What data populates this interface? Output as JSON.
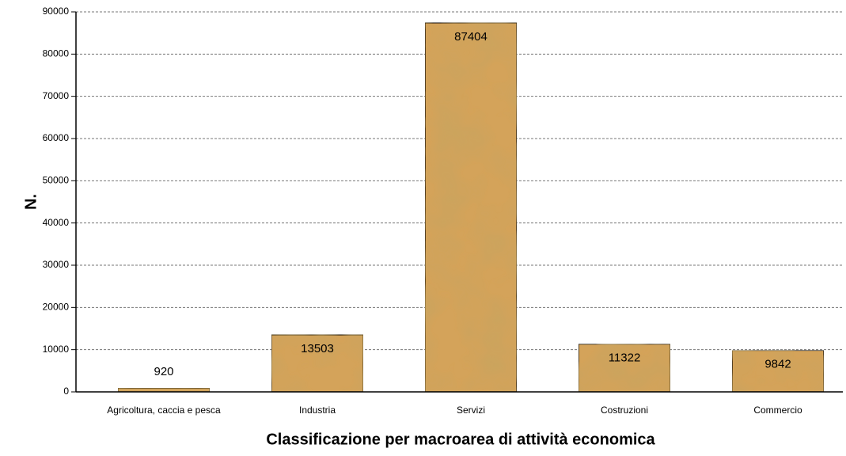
{
  "chart_data": {
    "type": "bar",
    "xlabel": "Classificazione per macroarea di attività economica",
    "ylabel": "N.",
    "categories": [
      "Agricoltura, caccia e pesca",
      "Industria",
      "Servizi",
      "Costruzioni",
      "Commercio"
    ],
    "values": [
      920,
      13503,
      87404,
      11322,
      9842
    ],
    "color": "#d4a35a",
    "ylim": [
      0,
      90000
    ],
    "yticks": [
      0,
      10000,
      20000,
      30000,
      40000,
      50000,
      60000,
      70000,
      80000,
      90000
    ],
    "grid": true
  }
}
